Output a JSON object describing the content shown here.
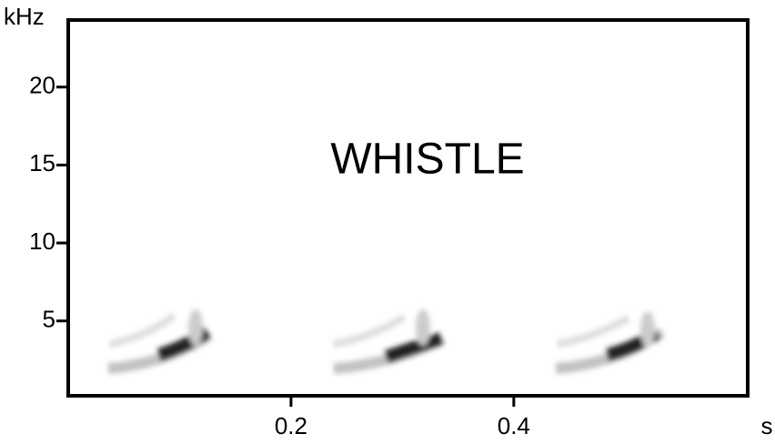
{
  "chart_data": {
    "type": "spectrogram",
    "annotation": "WHISTLE",
    "x_label": "s",
    "y_label": "kHz",
    "xlim": [
      0,
      0.61
    ],
    "xticks": [
      0.2,
      0.4
    ],
    "ylim": [
      0.2,
      24.3
    ],
    "yticks": [
      5,
      10,
      15,
      20
    ]
  }
}
